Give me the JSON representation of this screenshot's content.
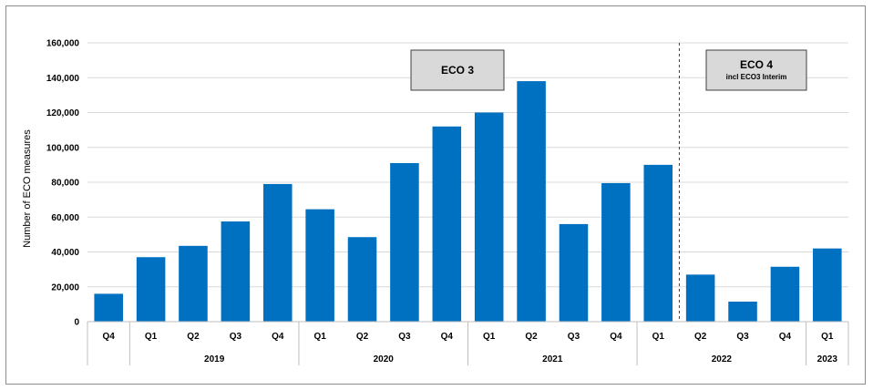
{
  "chart_data": {
    "type": "bar",
    "title": "",
    "xlabel": "",
    "ylabel": "Number of ECO measures",
    "ylim": [
      0,
      160000
    ],
    "yticks": [
      0,
      20000,
      40000,
      60000,
      80000,
      100000,
      120000,
      140000,
      160000
    ],
    "ytick_labels": [
      "0",
      "20,000",
      "40,000",
      "60,000",
      "80,000",
      "100,000",
      "120,000",
      "140,000",
      "160,000"
    ],
    "grid": true,
    "bar_color": "#0070c0",
    "categories": [
      "Q4",
      "Q1",
      "Q2",
      "Q3",
      "Q4",
      "Q1",
      "Q2",
      "Q3",
      "Q4",
      "Q1",
      "Q2",
      "Q3",
      "Q4",
      "Q1",
      "Q2",
      "Q3",
      "Q4",
      "Q1"
    ],
    "values": [
      16000,
      37000,
      43500,
      57500,
      79000,
      64500,
      48500,
      91000,
      112000,
      120000,
      138000,
      56000,
      79500,
      90000,
      27000,
      11500,
      31500,
      42000
    ],
    "year_groups": [
      {
        "label": "",
        "count": 1
      },
      {
        "label": "2019",
        "count": 4
      },
      {
        "label": "2020",
        "count": 4
      },
      {
        "label": "2021",
        "count": 4
      },
      {
        "label": "2022",
        "count": 4
      },
      {
        "label": "2023",
        "count": 1
      }
    ],
    "annotations": [
      {
        "title": "ECO 3",
        "subtitle": ""
      },
      {
        "title": "ECO 4",
        "subtitle": "incl ECO3 Interim"
      }
    ],
    "divider_after_category_index": 13
  }
}
